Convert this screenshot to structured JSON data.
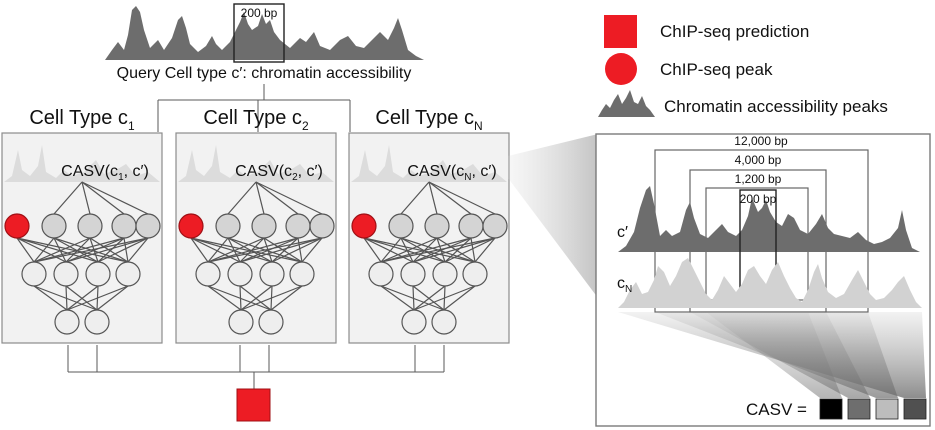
{
  "query": {
    "window_label": "200 bp",
    "label": "Query Cell type c′: chromatin accessibility"
  },
  "cell_types": [
    {
      "title_main": "Cell Type c",
      "title_sub": "1",
      "casv_prefix": "CASV(c",
      "casv_sub": "1",
      "casv_suffix": ", c′)"
    },
    {
      "title_main": "Cell Type c",
      "title_sub": "2",
      "casv_prefix": "CASV(c",
      "casv_sub": "2",
      "casv_suffix": ", c′)"
    },
    {
      "title_main": "Cell Type c",
      "title_sub": "N",
      "casv_prefix": "CASV(c",
      "casv_sub": "N",
      "casv_suffix": ", c′)"
    }
  ],
  "legend": {
    "prediction": "ChIP-seq prediction",
    "peak": "ChIP-seq peak",
    "accessibility": "Chromatin accessibility peaks"
  },
  "detail": {
    "windows": [
      "12,000 bp",
      "4,000 bp",
      "1,200 bp",
      "200 bp"
    ],
    "track_query": "c′",
    "track_ref_main": "c",
    "track_ref_sub": "N",
    "casv_label": "CASV ="
  },
  "colors": {
    "red": "#ed1c24",
    "casv_cells": [
      "#000000",
      "#6e6e6e",
      "#bdbdbd",
      "#505050"
    ]
  },
  "icons": {
    "prediction": "red-square-icon",
    "peak": "red-circle-icon",
    "accessibility": "grey-peaks-icon"
  }
}
